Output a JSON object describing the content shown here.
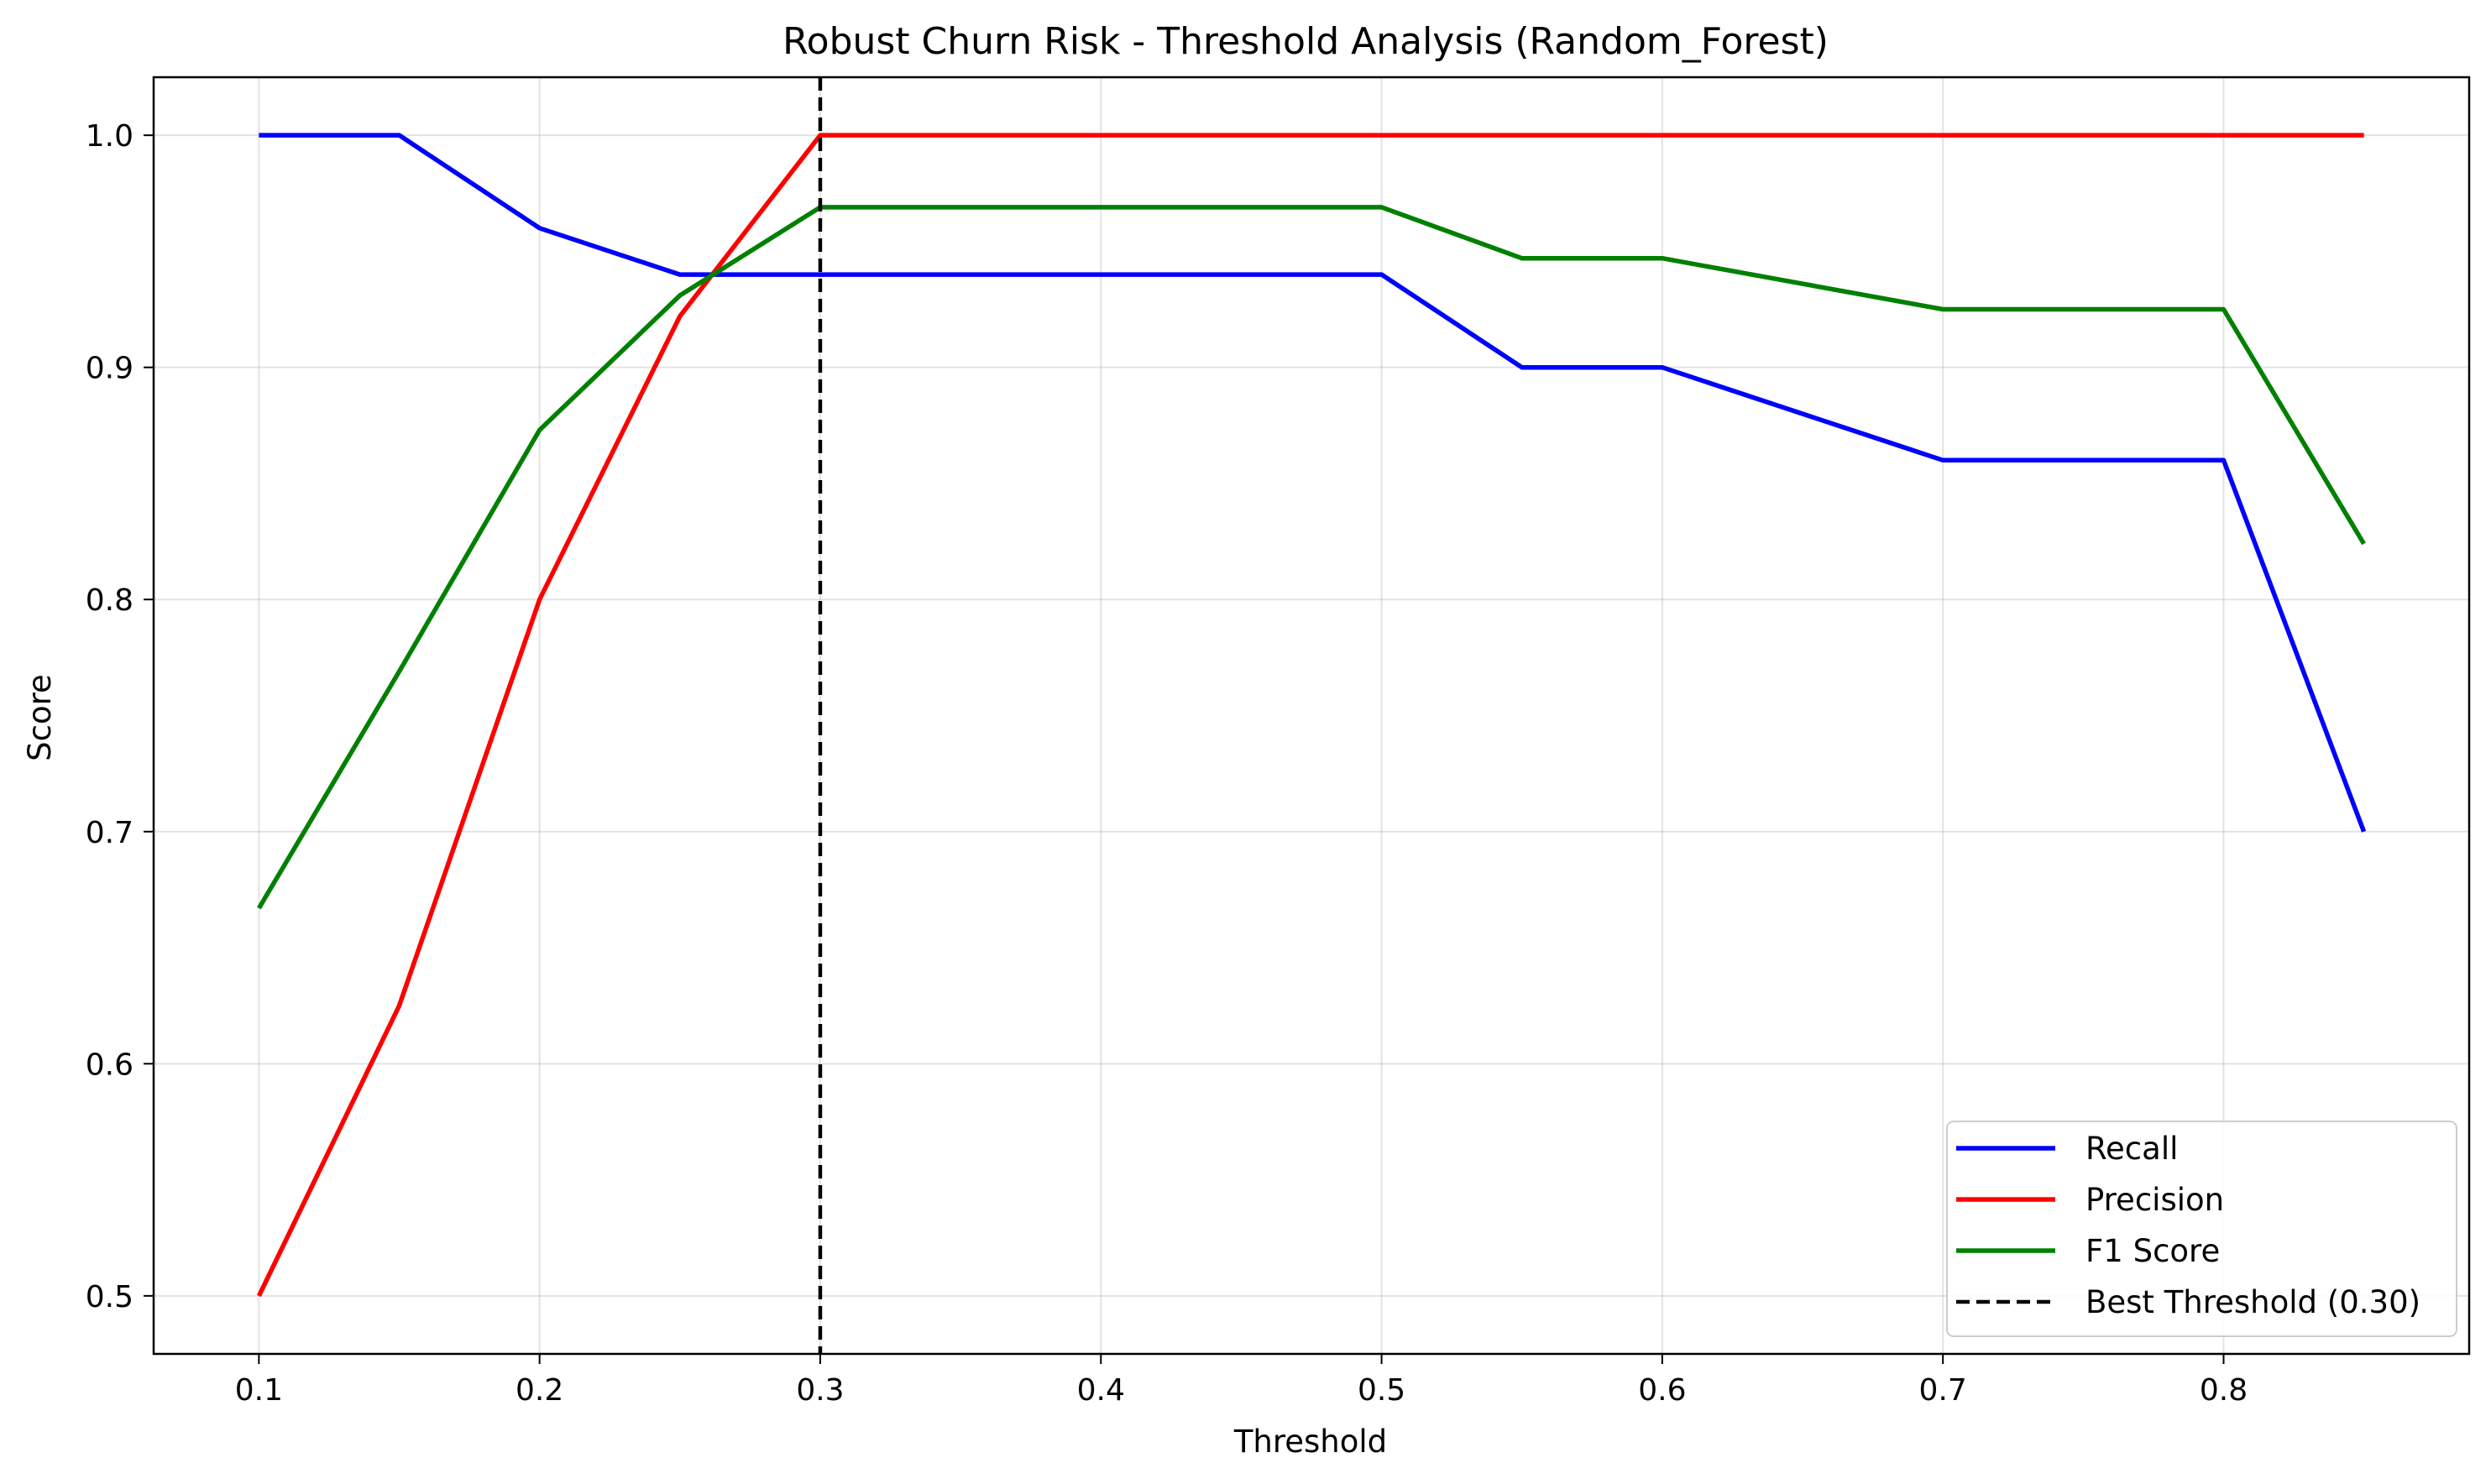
{
  "chart_data": {
    "type": "line",
    "title": "Robust Churn Risk - Threshold Analysis (Random_Forest)",
    "xlabel": "Threshold",
    "ylabel": "Score",
    "xlim": [
      0.0625,
      0.8875
    ],
    "ylim": [
      0.475,
      1.025
    ],
    "xticks": [
      0.1,
      0.2,
      0.3,
      0.4,
      0.5,
      0.6,
      0.7,
      0.8
    ],
    "xtick_labels": [
      "0.1",
      "0.2",
      "0.3",
      "0.4",
      "0.5",
      "0.6",
      "0.7",
      "0.8"
    ],
    "yticks": [
      0.5,
      0.6,
      0.7,
      0.8,
      0.9,
      1.0
    ],
    "ytick_labels": [
      "0.5",
      "0.6",
      "0.7",
      "0.8",
      "0.9",
      "1.0"
    ],
    "grid": true,
    "legend_position": "lower-right",
    "x": [
      0.1,
      0.15,
      0.2,
      0.25,
      0.3,
      0.35,
      0.4,
      0.45,
      0.5,
      0.55,
      0.6,
      0.65,
      0.7,
      0.75,
      0.8,
      0.85
    ],
    "series": [
      {
        "name": "Recall",
        "color": "#0000ff",
        "values": [
          1.0,
          1.0,
          0.96,
          0.94,
          0.94,
          0.94,
          0.94,
          0.94,
          0.94,
          0.9,
          0.9,
          0.88,
          0.86,
          0.86,
          0.86,
          0.7
        ]
      },
      {
        "name": "Precision",
        "color": "#ff0000",
        "values": [
          0.5,
          0.625,
          0.8,
          0.922,
          1.0,
          1.0,
          1.0,
          1.0,
          1.0,
          1.0,
          1.0,
          1.0,
          1.0,
          1.0,
          1.0,
          1.0
        ]
      },
      {
        "name": "F1 Score",
        "color": "#008000",
        "values": [
          0.667,
          0.769,
          0.873,
          0.931,
          0.969,
          0.969,
          0.969,
          0.969,
          0.969,
          0.947,
          0.947,
          0.936,
          0.925,
          0.925,
          0.925,
          0.824
        ]
      }
    ],
    "reference_line": {
      "orientation": "vertical",
      "x": 0.3,
      "name": "Best Threshold (0.30)",
      "color": "#000000",
      "style": "dashed"
    }
  }
}
